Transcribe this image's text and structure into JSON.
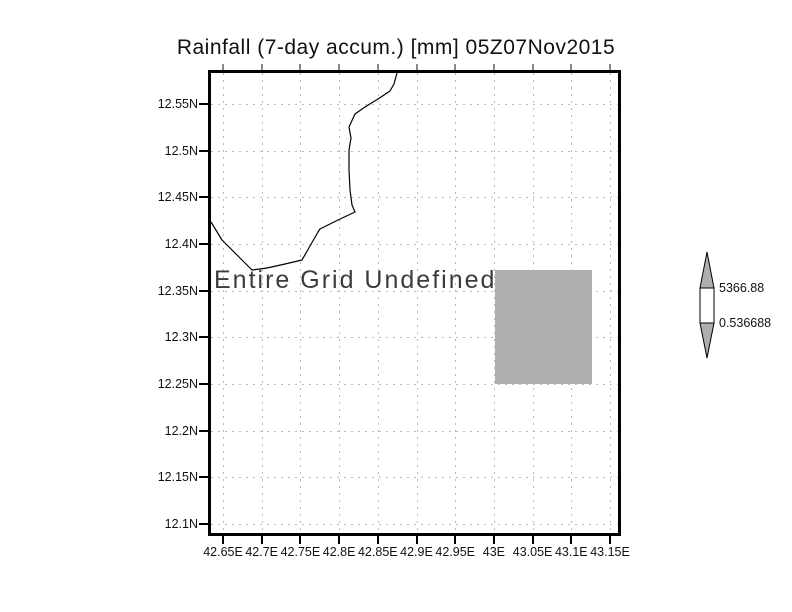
{
  "title": "Rainfall (7-day accum.) [mm] 05Z07Nov2015",
  "status_text": "Entire Grid Undefined",
  "colorbar": {
    "max_label": "5366.88",
    "min_label": "0.536688",
    "arrow_fill": "#afafaf",
    "mid_fill": "#ffffff"
  },
  "colors": {
    "undefined_region_gray": "#afafaf",
    "gridline_gray": "#b9b9b9",
    "frame_black": "#000000"
  },
  "chart_data": {
    "type": "heatmap",
    "title": "Rainfall (7-day accum.) [mm] 05Z07Nov2015",
    "units": "mm",
    "valid_time": "05Z07Nov2015",
    "status": "Entire Grid Undefined",
    "x_axis": {
      "tick_labels": [
        "42.65E",
        "42.7E",
        "42.75E",
        "42.8E",
        "42.85E",
        "42.9E",
        "42.95E",
        "43E",
        "43.05E",
        "43.1E",
        "43.15E"
      ],
      "range_deg_east": [
        42.63,
        43.17
      ],
      "tick_interval_deg": 0.05
    },
    "y_axis": {
      "tick_labels": [
        "12.55N",
        "12.5N",
        "12.45N",
        "12.4N",
        "12.35N",
        "12.3N",
        "12.25N",
        "12.2N",
        "12.15N",
        "12.1N"
      ],
      "range_deg_north": [
        12.09,
        12.59
      ],
      "tick_interval_deg": 0.05
    },
    "grid": true,
    "gridline_style": "dotted",
    "colorbar": {
      "position": "right",
      "max": 5366.88,
      "min": 0.536688,
      "max_label": "5366.88",
      "min_label": "0.536688"
    },
    "data_cells": [
      {
        "note": "single shaded (gray/undefined) rectangular region",
        "lon_min_deg_east": 43.0,
        "lon_max_deg_east": 43.125,
        "lat_min_deg_north": 12.25,
        "lat_max_deg_north": 12.375,
        "value": null
      }
    ],
    "annotations": [
      "coastline polyline in upper-left quadrant"
    ]
  }
}
